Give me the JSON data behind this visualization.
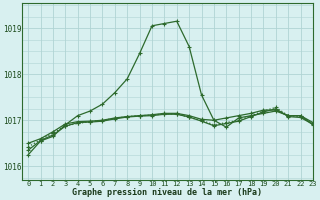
{
  "title": "Graphe pression niveau de la mer (hPa)",
  "bg_color": "#d8f0f0",
  "grid_color": "#b0d4d4",
  "line_color": "#2d6a2d",
  "xlim": [
    -0.5,
    23
  ],
  "ylim": [
    1015.7,
    1019.55
  ],
  "yticks": [
    1016,
    1017,
    1018,
    1019
  ],
  "xticks": [
    0,
    1,
    2,
    3,
    4,
    5,
    6,
    7,
    8,
    9,
    10,
    11,
    12,
    13,
    14,
    15,
    16,
    17,
    18,
    19,
    20,
    21,
    22,
    23
  ],
  "line1_x": [
    0,
    1,
    2,
    3,
    4,
    5,
    6,
    7,
    8,
    9,
    10,
    11,
    12,
    13,
    14,
    15,
    16,
    17,
    18,
    19,
    20,
    21,
    22,
    23
  ],
  "line1_y": [
    1016.25,
    1016.55,
    1016.65,
    1016.9,
    1017.1,
    1017.2,
    1017.35,
    1017.6,
    1017.9,
    1018.45,
    1019.05,
    1019.1,
    1019.15,
    1018.6,
    1017.55,
    1017.0,
    1016.85,
    1017.05,
    1017.1,
    1017.15,
    1017.2,
    1017.1,
    1017.1,
    1016.9
  ],
  "line1_style": "-",
  "line2_x": [
    0,
    1,
    2,
    3,
    4,
    5,
    6,
    7,
    8,
    9,
    10,
    11,
    12,
    13,
    14,
    15,
    16,
    17,
    18,
    19,
    20,
    21,
    22,
    23
  ],
  "line2_y": [
    1016.5,
    1016.6,
    1016.75,
    1016.92,
    1016.97,
    1016.98,
    1017.0,
    1017.05,
    1017.08,
    1017.1,
    1017.12,
    1017.15,
    1017.15,
    1017.1,
    1017.02,
    1017.0,
    1017.05,
    1017.1,
    1017.15,
    1017.22,
    1017.22,
    1017.1,
    1017.1,
    1016.95
  ],
  "line2_style": "-",
  "line3_x": [
    0,
    1,
    2,
    3,
    4,
    5,
    6,
    7,
    8,
    9,
    10,
    11,
    12,
    13,
    14,
    15,
    16,
    17,
    18,
    19,
    20,
    21,
    22,
    23
  ],
  "line3_y": [
    1016.42,
    1016.58,
    1016.72,
    1016.88,
    1016.93,
    1016.97,
    1017.0,
    1017.04,
    1017.08,
    1017.1,
    1017.11,
    1017.14,
    1017.14,
    1017.06,
    1017.0,
    1016.9,
    1016.95,
    1017.0,
    1017.1,
    1017.2,
    1017.28,
    1017.1,
    1017.08,
    1016.93
  ],
  "line3_style": ":",
  "line4_x": [
    0,
    1,
    2,
    3,
    4,
    5,
    6,
    7,
    8,
    9,
    10,
    11,
    12,
    13,
    14,
    15,
    16,
    17,
    18,
    19,
    20,
    21,
    22,
    23
  ],
  "line4_y": [
    1016.35,
    1016.56,
    1016.68,
    1016.87,
    1016.95,
    1016.96,
    1016.98,
    1017.03,
    1017.07,
    1017.09,
    1017.1,
    1017.13,
    1017.13,
    1017.07,
    1016.98,
    1016.88,
    1016.93,
    1016.98,
    1017.08,
    1017.18,
    1017.25,
    1017.08,
    1017.06,
    1016.91
  ],
  "line4_style": "-",
  "marker": "+",
  "markersize": 3.5,
  "linewidth": 0.9
}
